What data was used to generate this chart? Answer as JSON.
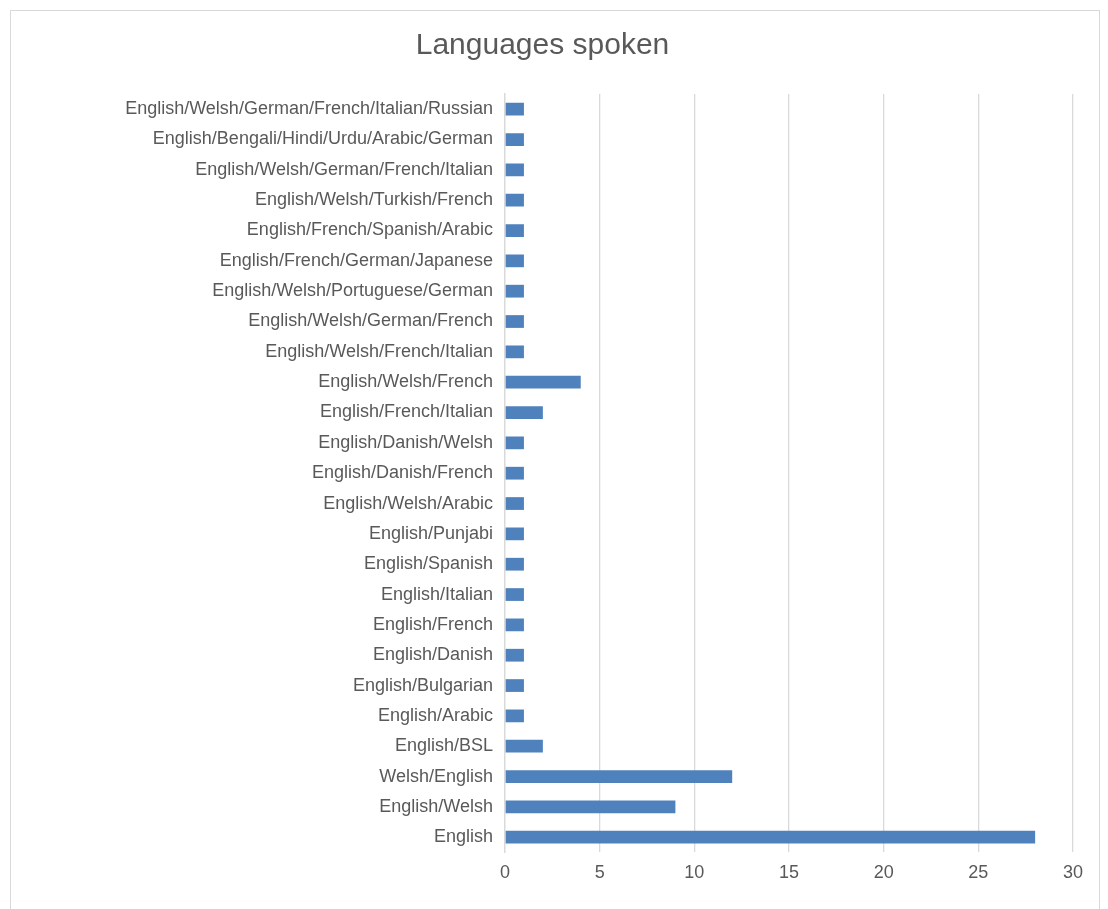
{
  "chart_data": {
    "type": "bar",
    "orientation": "horizontal",
    "title": "Languages spoken",
    "categories": [
      "English/Welsh/German/French/Italian/Russian",
      "English/Bengali/Hindi/Urdu/Arabic/German",
      "English/Welsh/German/French/Italian",
      "English/Welsh/Turkish/French",
      "English/French/Spanish/Arabic",
      "English/French/German/Japanese",
      "English/Welsh/Portuguese/German",
      "English/Welsh/German/French",
      "English/Welsh/French/Italian",
      "English/Welsh/French",
      "English/French/Italian",
      "English/Danish/Welsh",
      "English/Danish/French",
      "English/Welsh/Arabic",
      "English/Punjabi",
      "English/Spanish",
      "English/Italian",
      "English/French",
      "English/Danish",
      "English/Bulgarian",
      "English/Arabic",
      "English/BSL",
      "Welsh/English",
      "English/Welsh",
      "English"
    ],
    "values": [
      1,
      1,
      1,
      1,
      1,
      1,
      1,
      1,
      1,
      4,
      2,
      1,
      1,
      1,
      1,
      1,
      1,
      1,
      1,
      1,
      1,
      2,
      12,
      9,
      28
    ],
    "color": "#4f81bd",
    "xlim": [
      0,
      30
    ],
    "xticks": [
      0,
      5,
      10,
      15,
      20,
      25,
      30
    ],
    "grid": "x",
    "legend": false
  }
}
